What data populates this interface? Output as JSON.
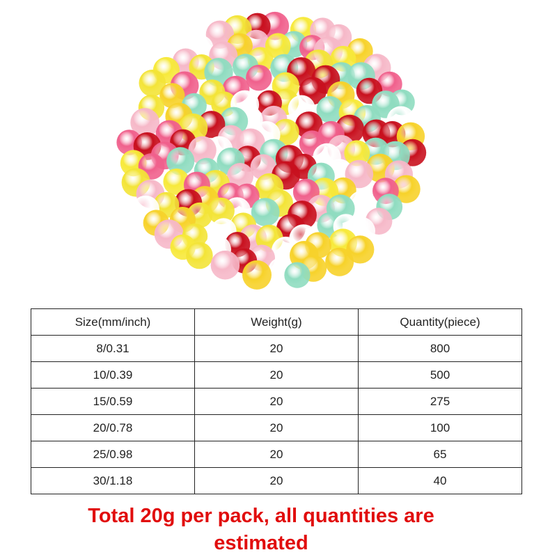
{
  "product_image": {
    "palette": [
      "#f7e93a",
      "#f3e437",
      "#f6b8c8",
      "#8fdcc0",
      "#c8101e",
      "#ffffff",
      "#f0608c",
      "#f7d22a"
    ]
  },
  "table": {
    "headers": [
      "Size(mm/inch)",
      "Weight(g)",
      "Quantity(piece)"
    ],
    "rows": [
      [
        "8/0.31",
        "20",
        "800"
      ],
      [
        "10/0.39",
        "20",
        "500"
      ],
      [
        "15/0.59",
        "20",
        "275"
      ],
      [
        "20/0.78",
        "20",
        "100"
      ],
      [
        "25/0.98",
        "20",
        "65"
      ],
      [
        "30/1.18",
        "20",
        "40"
      ]
    ]
  },
  "note": {
    "line1": "Total 20g per pack, all quantities are",
    "line2": "estimated"
  }
}
